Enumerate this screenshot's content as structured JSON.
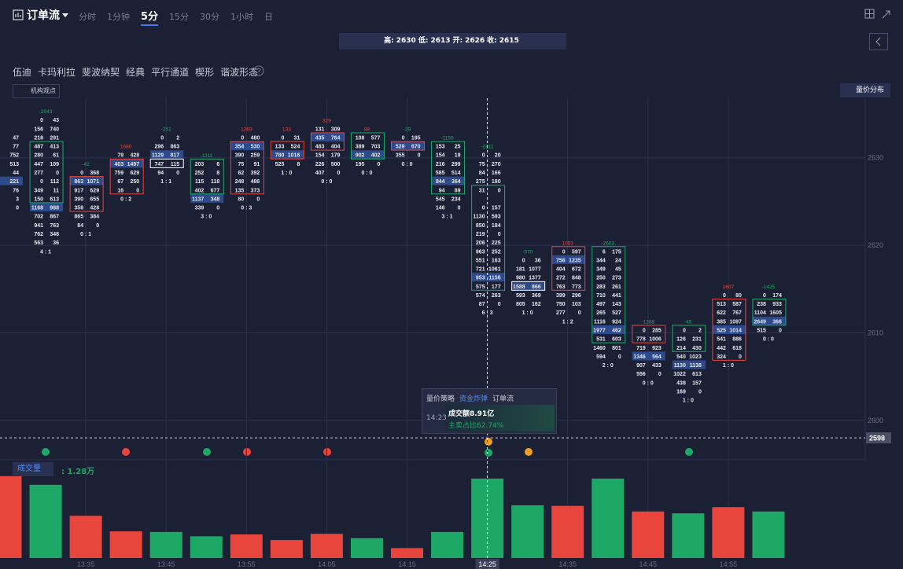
{
  "toolbar": {
    "title": "订单流",
    "tabs": [
      "分时",
      "1分钟",
      "5分",
      "15分",
      "30分",
      "1小时",
      "日"
    ],
    "active_tab": 2
  },
  "ohlc": [
    {
      "label": "高:",
      "value": 2630
    },
    {
      "label": "低:",
      "value": 2613
    },
    {
      "label": "开:",
      "value": 2626
    },
    {
      "label": "收:",
      "value": 2615
    }
  ],
  "tools": [
    "伍迪",
    "卡玛利拉",
    "斐波纳契",
    "经典",
    "平行通道",
    "楔形",
    "谐波形态"
  ],
  "tag": "机构观点",
  "button": "量价分布",
  "chart_data": {
    "type": "footprint",
    "ylim": [
      2595.5,
      2636.8
    ],
    "yticks": [
      2600,
      2610,
      2620,
      2630
    ],
    "grid": true,
    "last_price": 2598,
    "time_labels": [
      "13:35",
      "13:45",
      "13:55",
      "14:05",
      "14:15",
      "14:25",
      "14:35",
      "14:45",
      "14:55"
    ],
    "crosshair_label_index": 5,
    "clusters": [
      {
        "top": 2632,
        "rows": [
          [
            null,
            47
          ],
          [
            null,
            77
          ],
          [
            null,
            752
          ],
          [
            null,
            513
          ],
          [
            null,
            44
          ],
          [
            null,
            221
          ],
          [
            null,
            76
          ],
          [
            null,
            3
          ],
          [
            null,
            0
          ]
        ],
        "hl": 5
      },
      {
        "top": 2634,
        "delta": -2043,
        "ratio": "4 : 1",
        "box": [
          2631,
          2625
        ],
        "color": "#1ea866",
        "hl": 10,
        "rows": [
          [
            0,
            43
          ],
          [
            156,
            740
          ],
          [
            218,
            291
          ],
          [
            487,
            413
          ],
          [
            280,
            61
          ],
          [
            447,
            109
          ],
          [
            277,
            0
          ],
          [
            0,
            112
          ],
          [
            349,
            11
          ],
          [
            150,
            613
          ],
          [
            1168,
            988
          ],
          [
            702,
            867
          ],
          [
            941,
            763
          ],
          [
            762,
            348
          ],
          [
            563,
            36
          ]
        ]
      },
      {
        "top": 2628,
        "delta": -42,
        "ratio": "0 : 1",
        "box": [
          2627,
          2624
        ],
        "color": "#e8453c",
        "hl": 1,
        "rows": [
          [
            0,
            368
          ],
          [
            863,
            1071
          ],
          [
            917,
            629
          ],
          [
            390,
            655
          ],
          [
            358,
            428
          ],
          [
            865,
            384
          ],
          [
            84,
            0
          ]
        ]
      },
      {
        "top": 2630,
        "delta": 1680,
        "ratio": "0 : 2",
        "box": [
          2629,
          2626
        ],
        "color": "#e8453c",
        "hl": 1,
        "rows": [
          [
            79,
            428
          ],
          [
            403,
            1497
          ],
          [
            759,
            629
          ],
          [
            67,
            250
          ],
          [
            16,
            0
          ]
        ]
      },
      {
        "top": 2632,
        "delta": -251,
        "ratio": "1 : 1",
        "box": [
          2629,
          2629
        ],
        "color": "#ffffff",
        "hl": 2,
        "rows": [
          [
            0,
            2
          ],
          [
            296,
            863
          ],
          [
            1129,
            817
          ],
          [
            747,
            115
          ],
          [
            94,
            0
          ]
        ]
      },
      {
        "top": 2629,
        "delta": -1311,
        "ratio": "3 : 0",
        "box": [
          2629,
          2626
        ],
        "color": "#1ea866",
        "hl": 4,
        "rows": [
          [
            203,
            6
          ],
          [
            252,
            8
          ],
          [
            115,
            118
          ],
          [
            402,
            677
          ],
          [
            1137,
            348
          ],
          [
            339,
            0
          ]
        ]
      },
      {
        "top": 2632,
        "delta": 1269,
        "ratio": "0 : 3",
        "box": [
          2631,
          2626
        ],
        "color": "#e8453c",
        "hl": 1,
        "rows": [
          [
            0,
            480
          ],
          [
            354,
            530
          ],
          [
            390,
            259
          ],
          [
            75,
            91
          ],
          [
            62,
            392
          ],
          [
            248,
            486
          ],
          [
            135,
            373
          ],
          [
            80,
            0
          ]
        ]
      },
      {
        "top": 2632,
        "delta": 133,
        "ratio": "1 : 0",
        "box": [
          2631,
          2630
        ],
        "color": "#e8453c",
        "hl": 2,
        "rows": [
          [
            0,
            31
          ],
          [
            133,
            524
          ],
          [
            780,
            1016
          ],
          [
            525,
            8
          ]
        ]
      },
      {
        "top": 2633,
        "delta": 329,
        "ratio": "0 : 0",
        "box": [
          2632,
          2631
        ],
        "color": "#e8453c",
        "hl": 1,
        "rows": [
          [
            131,
            309
          ],
          [
            435,
            764
          ],
          [
            483,
            404
          ],
          [
            154,
            179
          ],
          [
            226,
            500
          ],
          [
            407,
            0
          ]
        ]
      },
      {
        "top": 2632,
        "delta": 88,
        "ratio": "0 : 0",
        "box": [
          2632,
          2630
        ],
        "color": "#1ea866",
        "hl": 2,
        "rows": [
          [
            108,
            577
          ],
          [
            389,
            703
          ],
          [
            902,
            402
          ],
          [
            195,
            0
          ]
        ]
      },
      {
        "top": 2632,
        "delta": -29,
        "ratio": "0 : 0",
        "box": [
          2631,
          2631
        ],
        "color": "#e8453c",
        "hl": 1,
        "rows": [
          [
            0,
            195
          ],
          [
            529,
            670
          ],
          [
            355,
            0
          ]
        ]
      },
      {
        "top": 2631,
        "delta": -1156,
        "ratio": "3 : 1",
        "box": [
          2631,
          2626
        ],
        "color": "#1ea866",
        "hl": 4,
        "rows": [
          [
            153,
            25
          ],
          [
            154,
            19
          ],
          [
            216,
            299
          ],
          [
            585,
            514
          ],
          [
            844,
            364
          ],
          [
            94,
            89
          ],
          [
            545,
            234
          ],
          [
            146,
            0
          ]
        ]
      },
      {
        "top": 2630,
        "delta": -2811,
        "ratio": "6 : 3",
        "box": [
          2626,
          2615
        ],
        "color": "#1ea866",
        "hl": 14,
        "rows": [
          [
            0,
            20
          ],
          [
            75,
            270
          ],
          [
            84,
            166
          ],
          [
            275,
            180
          ],
          [
            31,
            0
          ],
          null,
          [
            0,
            157
          ],
          [
            1130,
            593
          ],
          [
            850,
            184
          ],
          [
            219,
            0
          ],
          [
            206,
            225
          ],
          [
            963,
            252
          ],
          [
            551,
            163
          ],
          [
            721,
            1061
          ],
          [
            953,
            1156
          ],
          [
            575,
            177
          ],
          [
            574,
            263
          ],
          [
            87,
            0
          ]
        ]
      },
      {
        "top": 2618,
        "delta": -570,
        "ratio": "1 : 0",
        "box": [
          2615,
          2615
        ],
        "color": "#ffffff",
        "hl": 3,
        "rows": [
          [
            0,
            36
          ],
          [
            181,
            1077
          ],
          [
            980,
            1377
          ],
          [
            1588,
            866
          ],
          [
            593,
            369
          ],
          [
            805,
            162
          ]
        ]
      },
      {
        "top": 2619,
        "delta": 1053,
        "ratio": "1 : 2",
        "box": [
          2619,
          2615
        ],
        "color": "#e8453c",
        "hl": 1,
        "rows": [
          [
            0,
            597
          ],
          [
            756,
            1235
          ],
          [
            404,
            672
          ],
          [
            272,
            848
          ],
          [
            763,
            773
          ],
          [
            399,
            296
          ],
          [
            750,
            103
          ],
          [
            277,
            0
          ]
        ]
      },
      {
        "top": 2619,
        "delta": -2603,
        "ratio": "2 : 0",
        "box": [
          2619,
          2609
        ],
        "color": "#1ea866",
        "hl": 9,
        "rows": [
          [
            6,
            175
          ],
          [
            344,
            24
          ],
          [
            349,
            45
          ],
          [
            250,
            273
          ],
          [
            283,
            261
          ],
          [
            710,
            441
          ],
          [
            497,
            143
          ],
          [
            265,
            527
          ],
          [
            1116,
            924
          ],
          [
            1977,
            462
          ],
          [
            531,
            603
          ],
          [
            1460,
            801
          ],
          [
            594,
            0
          ]
        ]
      },
      {
        "top": 2610,
        "delta": -1388,
        "ratio": "0 : 0",
        "box": [
          2610,
          2609
        ],
        "color": "#e8453c",
        "hl": 3,
        "rows": [
          [
            0,
            285
          ],
          [
            778,
            1006
          ],
          [
            719,
            923
          ],
          [
            1346,
            564
          ],
          [
            907,
            433
          ],
          [
            556,
            0
          ]
        ]
      },
      {
        "top": 2610,
        "delta": -45,
        "ratio": "1 : 0",
        "box": [
          2610,
          2608
        ],
        "color": "#1ea866",
        "hl": 4,
        "rows": [
          [
            0,
            2
          ],
          [
            126,
            231
          ],
          [
            214,
            430
          ],
          [
            540,
            1023
          ],
          [
            1130,
            1138
          ],
          [
            1022,
            613
          ],
          [
            438,
            157
          ],
          [
            169,
            0
          ]
        ]
      },
      {
        "top": 2614,
        "delta": 1607,
        "ratio": "1 : 0",
        "box": [
          2613,
          2607
        ],
        "color": "#e8453c",
        "hl": 4,
        "rows": [
          [
            0,
            80
          ],
          [
            513,
            587
          ],
          [
            622,
            767
          ],
          [
            385,
            1097
          ],
          [
            525,
            1014
          ],
          [
            541,
            886
          ],
          [
            442,
            618
          ],
          [
            324,
            0
          ]
        ]
      },
      {
        "top": 2614,
        "delta": -1425,
        "ratio": "0 : 0",
        "box": [
          2613,
          2611
        ],
        "color": "#1ea866",
        "hl": 3,
        "rows": [
          [
            0,
            174
          ],
          [
            238,
            933
          ],
          [
            1104,
            1605
          ],
          [
            2649,
            366
          ],
          [
            515,
            0
          ]
        ]
      }
    ]
  },
  "volume": {
    "type": "bar",
    "name": "成交量",
    "current_label": ": 1.28万",
    "ylim": [
      0,
      1.33
    ],
    "values": [
      1.32,
      1.18,
      0.68,
      0.43,
      0.42,
      0.35,
      0.38,
      0.29,
      0.39,
      0.32,
      0.16,
      0.42,
      1.28,
      0.85,
      0.84,
      1.28,
      0.75,
      0.72,
      0.82,
      0.75
    ],
    "colors": [
      "#e8453c",
      "#1ea866",
      "#e8453c",
      "#e8453c",
      "#1ea866",
      "#1ea866",
      "#e8453c",
      "#e8453c",
      "#e8453c",
      "#1ea866",
      "#e8453c",
      "#1ea866",
      "#1ea866",
      "#1ea866",
      "#e8453c",
      "#1ea866",
      "#e8453c",
      "#1ea866",
      "#e8453c",
      "#1ea866"
    ]
  },
  "tooltip": {
    "tabs": [
      "量价策略",
      "资金炸弹",
      "订单流"
    ],
    "active_tab": 1,
    "time": "14:23",
    "amount": "成交额8.91亿",
    "sell_ratio": "主卖占比62.74%"
  }
}
